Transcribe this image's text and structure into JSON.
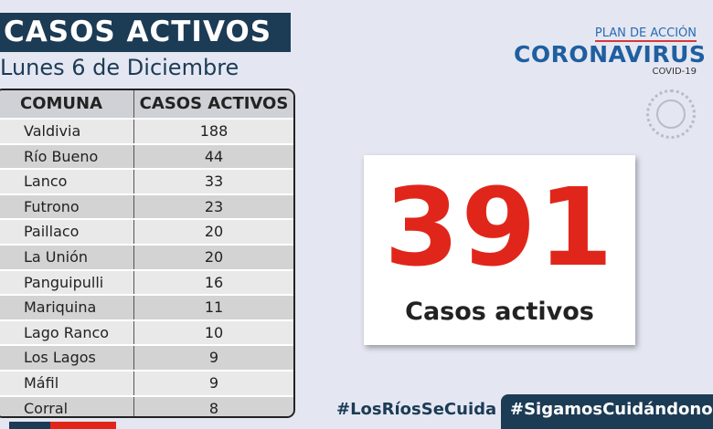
{
  "header": {
    "title": "CASOS ACTIVOS",
    "date": "Lunes 6 de Diciembre"
  },
  "table": {
    "headers": [
      "COMUNA",
      "CASOS ACTIVOS"
    ],
    "rows": [
      [
        "Valdivia",
        "188"
      ],
      [
        "Río Bueno",
        "44"
      ],
      [
        "Lanco",
        "33"
      ],
      [
        "Futrono",
        "23"
      ],
      [
        "Paillaco",
        "20"
      ],
      [
        "La Unión",
        "20"
      ],
      [
        "Panguipulli",
        "16"
      ],
      [
        "Mariquina",
        "11"
      ],
      [
        "Lago Ranco",
        "10"
      ],
      [
        "Los Lagos",
        "9"
      ],
      [
        "Máfil",
        "9"
      ],
      [
        "Corral",
        "8"
      ]
    ]
  },
  "logo": {
    "plan": "PLAN DE ACCIÓN",
    "name": "CORONAVIRUS",
    "sub": "COVID-19"
  },
  "total": {
    "value": "391",
    "label": "Casos activos"
  },
  "hashtags": [
    "#LosRíosSeCuida",
    "#SigamosCuidándonos"
  ],
  "colors": {
    "navy": "#1c3b55",
    "red": "#e0261b",
    "background": "#e4e7f2"
  }
}
